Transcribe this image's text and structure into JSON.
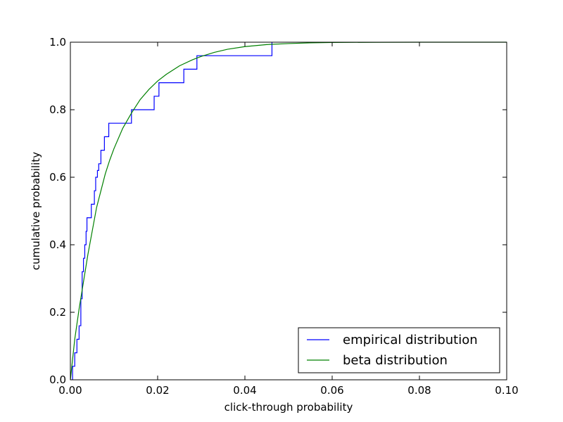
{
  "chart_data": {
    "type": "line",
    "title": "",
    "xlabel": "click-through probability",
    "ylabel": "cumulative probability",
    "xlim": [
      0.0,
      0.1
    ],
    "ylim": [
      0.0,
      1.0
    ],
    "xticks": [
      0.0,
      0.02,
      0.04,
      0.06,
      0.08,
      0.1
    ],
    "xtick_labels": [
      "0.00",
      "0.02",
      "0.04",
      "0.06",
      "0.08",
      "0.10"
    ],
    "yticks": [
      0.0,
      0.2,
      0.4,
      0.6,
      0.8,
      1.0
    ],
    "ytick_labels": [
      "0.0",
      "0.2",
      "0.4",
      "0.6",
      "0.8",
      "1.0"
    ],
    "grid": false,
    "legend_position": "lower-right",
    "series": [
      {
        "name": "empirical distribution",
        "color": "#0000ff",
        "style": "step",
        "x": [
          0.0005,
          0.0005,
          0.001,
          0.0015,
          0.002,
          0.0024,
          0.0027,
          0.003,
          0.0033,
          0.0036,
          0.0038,
          0.0048,
          0.0055,
          0.0058,
          0.0062,
          0.0065,
          0.007,
          0.0078,
          0.0088,
          0.014,
          0.0192,
          0.0203,
          0.026,
          0.029,
          0.0462,
          0.0462
        ],
        "y": [
          0.0,
          0.04,
          0.08,
          0.12,
          0.16,
          0.24,
          0.32,
          0.36,
          0.4,
          0.44,
          0.48,
          0.52,
          0.56,
          0.6,
          0.62,
          0.64,
          0.68,
          0.72,
          0.76,
          0.8,
          0.84,
          0.88,
          0.92,
          0.96,
          1.0,
          1.0
        ]
      },
      {
        "name": "beta distribution",
        "color": "#008000",
        "style": "line",
        "x": [
          0.0,
          0.001,
          0.002,
          0.003,
          0.004,
          0.005,
          0.006,
          0.007,
          0.008,
          0.009,
          0.01,
          0.012,
          0.014,
          0.016,
          0.018,
          0.02,
          0.022,
          0.025,
          0.028,
          0.03,
          0.033,
          0.036,
          0.04,
          0.045,
          0.05,
          0.055,
          0.06,
          0.07,
          0.08,
          0.1
        ],
        "y": [
          0.0,
          0.12,
          0.21,
          0.29,
          0.37,
          0.44,
          0.51,
          0.56,
          0.61,
          0.65,
          0.685,
          0.745,
          0.79,
          0.83,
          0.86,
          0.885,
          0.905,
          0.93,
          0.948,
          0.958,
          0.97,
          0.979,
          0.987,
          0.993,
          0.996,
          0.998,
          0.9992,
          0.9998,
          1.0,
          1.0
        ]
      }
    ]
  }
}
